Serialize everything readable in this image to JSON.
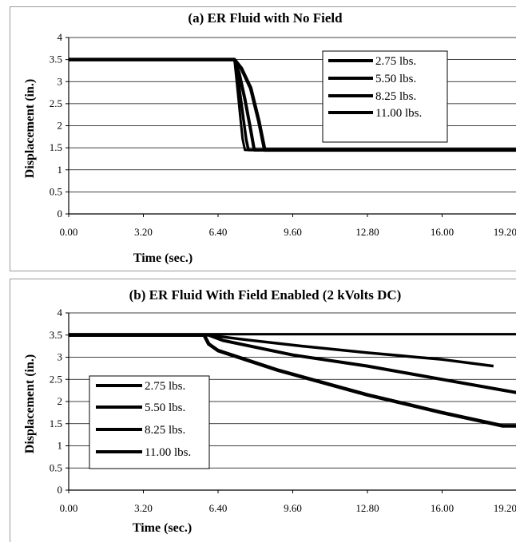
{
  "chart_data": [
    {
      "type": "line",
      "title": "(a) ER Fluid with No Field",
      "xlabel": "Time (sec.)",
      "ylabel": "Displacement (in.)",
      "xlim": [
        0,
        19.2
      ],
      "ylim": [
        0,
        4
      ],
      "x_ticks": [
        "0.00",
        "3.20",
        "6.40",
        "9.60",
        "12.80",
        "16.00",
        "19.20"
      ],
      "y_ticks": [
        "0",
        "0.5",
        "1",
        "1.5",
        "2",
        "2.5",
        "3",
        "3.5",
        "4"
      ],
      "grid": "horizontal",
      "legend_position": "top-right",
      "series": [
        {
          "name": "2.75 lbs.",
          "points": [
            [
              0,
              3.5
            ],
            [
              7.1,
              3.5
            ],
            [
              7.4,
              3.3
            ],
            [
              7.8,
              2.85
            ],
            [
              8.15,
              2.1
            ],
            [
              8.4,
              1.45
            ],
            [
              19.2,
              1.45
            ]
          ]
        },
        {
          "name": "5.50 lbs.",
          "points": [
            [
              0,
              3.5
            ],
            [
              7.1,
              3.5
            ],
            [
              7.3,
              3.2
            ],
            [
              7.55,
              2.6
            ],
            [
              7.8,
              1.9
            ],
            [
              7.95,
              1.45
            ],
            [
              19.2,
              1.45
            ]
          ]
        },
        {
          "name": "8.25 lbs.",
          "points": [
            [
              0,
              3.5
            ],
            [
              7.1,
              3.5
            ],
            [
              7.25,
              3.1
            ],
            [
              7.45,
              2.3
            ],
            [
              7.6,
              1.7
            ],
            [
              7.7,
              1.45
            ],
            [
              19.2,
              1.45
            ]
          ]
        },
        {
          "name": "11.00 lbs.",
          "points": [
            [
              0,
              3.5
            ],
            [
              7.1,
              3.5
            ],
            [
              7.2,
              3.0
            ],
            [
              7.35,
              2.2
            ],
            [
              7.45,
              1.7
            ],
            [
              7.55,
              1.45
            ],
            [
              19.2,
              1.45
            ]
          ]
        }
      ]
    },
    {
      "type": "line",
      "title": "(b) ER Fluid With Field Enabled (2 kVolts DC)",
      "xlabel": "Time (sec.)",
      "ylabel": "Displacement (in.)",
      "xlim": [
        0,
        19.2
      ],
      "ylim": [
        0,
        4
      ],
      "x_ticks": [
        "0.00",
        "3.20",
        "6.40",
        "9.60",
        "12.80",
        "16.00",
        "19.20"
      ],
      "y_ticks": [
        "0",
        "0.5",
        "1",
        "1.5",
        "2",
        "2.5",
        "3",
        "3.5",
        "4"
      ],
      "grid": "horizontal",
      "legend_position": "center-left",
      "series": [
        {
          "name": "2.75 lbs.",
          "points": [
            [
              0,
              3.5
            ],
            [
              5.8,
              3.5
            ],
            [
              6.0,
              3.3
            ],
            [
              6.4,
              3.15
            ],
            [
              9.0,
              2.7
            ],
            [
              12.8,
              2.15
            ],
            [
              16.0,
              1.75
            ],
            [
              18.6,
              1.45
            ],
            [
              19.2,
              1.45
            ]
          ]
        },
        {
          "name": "5.50 lbs.",
          "points": [
            [
              0,
              3.5
            ],
            [
              6.0,
              3.5
            ],
            [
              6.6,
              3.38
            ],
            [
              9.6,
              3.05
            ],
            [
              12.8,
              2.8
            ],
            [
              16.0,
              2.5
            ],
            [
              19.2,
              2.2
            ]
          ]
        },
        {
          "name": "8.25 lbs.",
          "points": [
            [
              0,
              3.5
            ],
            [
              6.0,
              3.5
            ],
            [
              7.5,
              3.4
            ],
            [
              10.0,
              3.25
            ],
            [
              12.8,
              3.1
            ],
            [
              16.0,
              2.95
            ],
            [
              18.2,
              2.8
            ]
          ]
        },
        {
          "name": "11.00 lbs.",
          "points": [
            [
              0,
              3.52
            ],
            [
              19.2,
              3.52
            ]
          ]
        }
      ]
    }
  ]
}
